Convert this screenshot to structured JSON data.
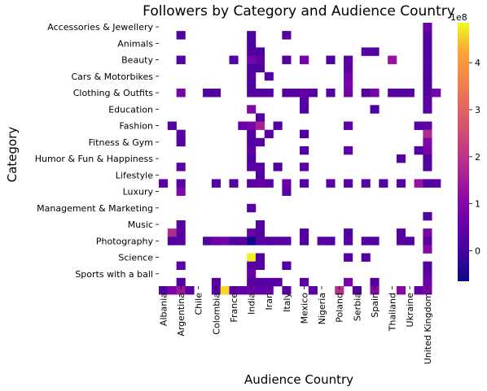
{
  "chart_data": {
    "type": "heatmap",
    "title": "Followers by Category and Audience Country",
    "xlabel": "Audience Country",
    "ylabel": "Category",
    "y_categories": [
      "Accessories & Jewellery",
      "",
      "Animals",
      "",
      "Beauty",
      "",
      "Cars & Motorbikes",
      "",
      "Clothing & Outfits",
      "",
      "Education",
      "",
      "Fashion",
      "",
      "Fitness & Gym",
      "",
      "Humor & Fun & Happiness",
      "",
      "Lifestyle",
      "",
      "Luxury",
      "",
      "Management & Marketing",
      "",
      "Music",
      "",
      "Photography",
      "",
      "Science",
      "",
      "Sports with a ball",
      ""
    ],
    "y_tick_labels": [
      "Accessories & Jewellery",
      "Animals",
      "Beauty",
      "Cars & Motorbikes",
      "Clothing & Outfits",
      "Education",
      "Fashion",
      "Fitness & Gym",
      "Humor & Fun & Happiness",
      "Lifestyle",
      "Luxury",
      "Management & Marketing",
      "Music",
      "Photography",
      "Science",
      "Sports with a ball"
    ],
    "x_categories": [
      "Albania",
      "",
      "Argentina",
      "",
      "Chile",
      "",
      "Colombia",
      "",
      "France",
      "",
      "India",
      "",
      "Iran",
      "",
      "Italy",
      "",
      "Mexico",
      "",
      "Nigeria",
      "",
      "Poland",
      "",
      "Serbia",
      "",
      "Spain",
      "",
      "Thailand",
      "",
      "Ukraine",
      "",
      "United Kingdom",
      ""
    ],
    "x_tick_labels": [
      "Albania",
      "Argentina",
      "Chile",
      "Colombia",
      "France",
      "India",
      "Iran",
      "Italy",
      "Mexico",
      "Nigeria",
      "Poland",
      "Serbia",
      "Spain",
      "Thailand",
      "Ukraine",
      "United Kingdom"
    ],
    "colorbar": {
      "colormap": "plasma",
      "vmin": -0.65,
      "vmax": 4.85,
      "ticks": [
        0,
        1,
        2,
        3,
        4
      ],
      "offset_label": "1e8"
    },
    "cells": [
      {
        "r": 0,
        "c": 30,
        "v": 0.6
      },
      {
        "r": 1,
        "c": 2,
        "v": 0.2
      },
      {
        "r": 1,
        "c": 10,
        "v": 0.1
      },
      {
        "r": 1,
        "c": 14,
        "v": 0.2
      },
      {
        "r": 1,
        "c": 30,
        "v": 0.3
      },
      {
        "r": 2,
        "c": 10,
        "v": 0.1
      },
      {
        "r": 2,
        "c": 30,
        "v": 0.2
      },
      {
        "r": 3,
        "c": 10,
        "v": 0.2
      },
      {
        "r": 3,
        "c": 11,
        "v": 0.1
      },
      {
        "r": 3,
        "c": 23,
        "v": 0.3
      },
      {
        "r": 3,
        "c": 24,
        "v": 0.2
      },
      {
        "r": 3,
        "c": 30,
        "v": 0.2
      },
      {
        "r": 4,
        "c": 2,
        "v": 0.2
      },
      {
        "r": 4,
        "c": 8,
        "v": 0.2
      },
      {
        "r": 4,
        "c": 10,
        "v": 0.8
      },
      {
        "r": 4,
        "c": 11,
        "v": 0.4
      },
      {
        "r": 4,
        "c": 14,
        "v": 0.2
      },
      {
        "r": 4,
        "c": 16,
        "v": 0.7
      },
      {
        "r": 4,
        "c": 19,
        "v": 0.1
      },
      {
        "r": 4,
        "c": 21,
        "v": 0.3
      },
      {
        "r": 4,
        "c": 26,
        "v": 1.3
      },
      {
        "r": 4,
        "c": 30,
        "v": 0.2
      },
      {
        "r": 5,
        "c": 10,
        "v": 0.1
      },
      {
        "r": 5,
        "c": 11,
        "v": 0.2
      },
      {
        "r": 5,
        "c": 21,
        "v": 0.4
      },
      {
        "r": 5,
        "c": 30,
        "v": 0.2
      },
      {
        "r": 6,
        "c": 10,
        "v": 0.2
      },
      {
        "r": 6,
        "c": 12,
        "v": 0.2
      },
      {
        "r": 6,
        "c": 21,
        "v": 0.7
      },
      {
        "r": 6,
        "c": 30,
        "v": 0.1
      },
      {
        "r": 7,
        "c": 10,
        "v": 0.1
      },
      {
        "r": 7,
        "c": 21,
        "v": 0.8
      },
      {
        "r": 7,
        "c": 30,
        "v": 0.2
      },
      {
        "r": 8,
        "c": 2,
        "v": 0.8
      },
      {
        "r": 8,
        "c": 5,
        "v": 0.2
      },
      {
        "r": 8,
        "c": 6,
        "v": 0.2
      },
      {
        "r": 8,
        "c": 10,
        "v": 0.3
      },
      {
        "r": 8,
        "c": 11,
        "v": 0.2
      },
      {
        "r": 8,
        "c": 12,
        "v": 0.3
      },
      {
        "r": 8,
        "c": 14,
        "v": 0.2
      },
      {
        "r": 8,
        "c": 15,
        "v": 0.3
      },
      {
        "r": 8,
        "c": 16,
        "v": 0.5
      },
      {
        "r": 8,
        "c": 17,
        "v": 0.3
      },
      {
        "r": 8,
        "c": 19,
        "v": 0.2
      },
      {
        "r": 8,
        "c": 21,
        "v": 0.7
      },
      {
        "r": 8,
        "c": 23,
        "v": 0.2
      },
      {
        "r": 8,
        "c": 24,
        "v": 0.8
      },
      {
        "r": 8,
        "c": 26,
        "v": 0.3
      },
      {
        "r": 8,
        "c": 27,
        "v": 0.2
      },
      {
        "r": 8,
        "c": 28,
        "v": 0.3
      },
      {
        "r": 8,
        "c": 30,
        "v": 0.2
      },
      {
        "r": 8,
        "c": 31,
        "v": 0.8
      },
      {
        "r": 9,
        "c": 16,
        "v": 0.3
      },
      {
        "r": 9,
        "c": 30,
        "v": 0.4
      },
      {
        "r": 10,
        "c": 10,
        "v": 0.9
      },
      {
        "r": 10,
        "c": 16,
        "v": 0.2
      },
      {
        "r": 10,
        "c": 24,
        "v": 0.1
      },
      {
        "r": 10,
        "c": 30,
        "v": 0.3
      },
      {
        "r": 11,
        "c": 11,
        "v": 0.2
      },
      {
        "r": 12,
        "c": 1,
        "v": 0.2
      },
      {
        "r": 12,
        "c": 9,
        "v": 0.5
      },
      {
        "r": 12,
        "c": 10,
        "v": 0.8
      },
      {
        "r": 12,
        "c": 11,
        "v": 1.6
      },
      {
        "r": 12,
        "c": 13,
        "v": 0.2
      },
      {
        "r": 12,
        "c": 21,
        "v": 0.4
      },
      {
        "r": 12,
        "c": 29,
        "v": 0.3
      },
      {
        "r": 12,
        "c": 30,
        "v": 0.4
      },
      {
        "r": 13,
        "c": 2,
        "v": 0.3
      },
      {
        "r": 13,
        "c": 10,
        "v": 0.2
      },
      {
        "r": 13,
        "c": 12,
        "v": 0.3
      },
      {
        "r": 13,
        "c": 16,
        "v": 0.2
      },
      {
        "r": 13,
        "c": 30,
        "v": 1.8
      },
      {
        "r": 14,
        "c": 2,
        "v": 0.2
      },
      {
        "r": 14,
        "c": 10,
        "v": 0.2
      },
      {
        "r": 14,
        "c": 11,
        "v": 0.3
      },
      {
        "r": 14,
        "c": 30,
        "v": 0.9
      },
      {
        "r": 15,
        "c": 10,
        "v": 0.4
      },
      {
        "r": 15,
        "c": 16,
        "v": 0.2
      },
      {
        "r": 15,
        "c": 21,
        "v": 0.4
      },
      {
        "r": 15,
        "c": 29,
        "v": 0.2
      },
      {
        "r": 15,
        "c": 30,
        "v": 0.8
      },
      {
        "r": 16,
        "c": 10,
        "v": 0.1
      },
      {
        "r": 16,
        "c": 27,
        "v": 0.3
      },
      {
        "r": 16,
        "c": 30,
        "v": 0.2
      },
      {
        "r": 17,
        "c": 2,
        "v": 0.3
      },
      {
        "r": 17,
        "c": 10,
        "v": 0.3
      },
      {
        "r": 17,
        "c": 11,
        "v": 0.3
      },
      {
        "r": 17,
        "c": 13,
        "v": 0.2
      },
      {
        "r": 17,
        "c": 16,
        "v": 0.3
      },
      {
        "r": 17,
        "c": 30,
        "v": 0.2
      },
      {
        "r": 18,
        "c": 11,
        "v": 0.2
      },
      {
        "r": 19,
        "c": 0,
        "v": 0.3
      },
      {
        "r": 19,
        "c": 2,
        "v": 0.3
      },
      {
        "r": 19,
        "c": 6,
        "v": 0.2
      },
      {
        "r": 19,
        "c": 8,
        "v": 0.2
      },
      {
        "r": 19,
        "c": 10,
        "v": 0.3
      },
      {
        "r": 19,
        "c": 11,
        "v": 0.5
      },
      {
        "r": 19,
        "c": 12,
        "v": 0.3
      },
      {
        "r": 19,
        "c": 14,
        "v": 0.6
      },
      {
        "r": 19,
        "c": 16,
        "v": 0.2
      },
      {
        "r": 19,
        "c": 19,
        "v": 0.3
      },
      {
        "r": 19,
        "c": 21,
        "v": 0.3
      },
      {
        "r": 19,
        "c": 23,
        "v": 0.3
      },
      {
        "r": 19,
        "c": 25,
        "v": 0.2
      },
      {
        "r": 19,
        "c": 27,
        "v": 0.3
      },
      {
        "r": 19,
        "c": 29,
        "v": 1.3
      },
      {
        "r": 19,
        "c": 30,
        "v": 0.2
      },
      {
        "r": 19,
        "c": 31,
        "v": 0.3
      },
      {
        "r": 20,
        "c": 2,
        "v": 0.9
      },
      {
        "r": 20,
        "c": 14,
        "v": 0.3
      },
      {
        "r": 22,
        "c": 10,
        "v": 0.3
      },
      {
        "r": 23,
        "c": 30,
        "v": 0.2
      },
      {
        "r": 24,
        "c": 2,
        "v": 0.3
      },
      {
        "r": 24,
        "c": 11,
        "v": 0.2
      },
      {
        "r": 25,
        "c": 1,
        "v": 1.8
      },
      {
        "r": 25,
        "c": 2,
        "v": 0.2
      },
      {
        "r": 25,
        "c": 10,
        "v": 0.6
      },
      {
        "r": 25,
        "c": 11,
        "v": 0.2
      },
      {
        "r": 25,
        "c": 16,
        "v": 0.2
      },
      {
        "r": 25,
        "c": 21,
        "v": 0.2
      },
      {
        "r": 25,
        "c": 27,
        "v": 0.3
      },
      {
        "r": 25,
        "c": 30,
        "v": 0.8
      },
      {
        "r": 26,
        "c": 1,
        "v": 0.2
      },
      {
        "r": 26,
        "c": 2,
        "v": 0.3
      },
      {
        "r": 26,
        "c": 5,
        "v": 0.2
      },
      {
        "r": 26,
        "c": 6,
        "v": 0.6
      },
      {
        "r": 26,
        "c": 7,
        "v": 0.7
      },
      {
        "r": 26,
        "c": 8,
        "v": 0.2
      },
      {
        "r": 26,
        "c": 9,
        "v": 0.3
      },
      {
        "r": 26,
        "c": 10,
        "v": -0.6
      },
      {
        "r": 26,
        "c": 11,
        "v": 0.3
      },
      {
        "r": 26,
        "c": 12,
        "v": 0.2
      },
      {
        "r": 26,
        "c": 13,
        "v": 0.3
      },
      {
        "r": 26,
        "c": 14,
        "v": 0.3
      },
      {
        "r": 26,
        "c": 16,
        "v": 0.2
      },
      {
        "r": 26,
        "c": 18,
        "v": 0.3
      },
      {
        "r": 26,
        "c": 19,
        "v": 0.2
      },
      {
        "r": 26,
        "c": 21,
        "v": 0.3
      },
      {
        "r": 26,
        "c": 23,
        "v": 0.3
      },
      {
        "r": 26,
        "c": 24,
        "v": 0.2
      },
      {
        "r": 26,
        "c": 27,
        "v": 0.3
      },
      {
        "r": 26,
        "c": 28,
        "v": 0.2
      },
      {
        "r": 26,
        "c": 30,
        "v": 0.3
      },
      {
        "r": 27,
        "c": 30,
        "v": 1.0
      },
      {
        "r": 28,
        "c": 10,
        "v": 4.8
      },
      {
        "r": 28,
        "c": 11,
        "v": 0.2
      },
      {
        "r": 28,
        "c": 21,
        "v": 0.3
      },
      {
        "r": 28,
        "c": 23,
        "v": 0.2
      },
      {
        "r": 29,
        "c": 2,
        "v": 0.3
      },
      {
        "r": 29,
        "c": 10,
        "v": 0.3
      },
      {
        "r": 29,
        "c": 11,
        "v": 0.2
      },
      {
        "r": 29,
        "c": 14,
        "v": 0.2
      },
      {
        "r": 29,
        "c": 30,
        "v": 0.2
      },
      {
        "r": 30,
        "c": 10,
        "v": 0.6
      },
      {
        "r": 30,
        "c": 30,
        "v": 0.4
      },
      {
        "r": 31,
        "c": 2,
        "v": 0.2
      },
      {
        "r": 31,
        "c": 6,
        "v": 0.3
      },
      {
        "r": 31,
        "c": 10,
        "v": 0.3
      },
      {
        "r": 31,
        "c": 11,
        "v": 0.3
      },
      {
        "r": 31,
        "c": 12,
        "v": 0.3
      },
      {
        "r": 31,
        "c": 13,
        "v": 0.3
      },
      {
        "r": 31,
        "c": 16,
        "v": 0.3
      },
      {
        "r": 31,
        "c": 21,
        "v": 0.8
      },
      {
        "r": 31,
        "c": 24,
        "v": 0.2
      },
      {
        "r": 31,
        "c": 30,
        "v": 0.6
      },
      {
        "r": 32,
        "c": 0,
        "v": 0.3
      },
      {
        "r": 32,
        "c": 1,
        "v": 0.8
      },
      {
        "r": 32,
        "c": 2,
        "v": 1.4
      },
      {
        "r": 32,
        "c": 3,
        "v": 0.3
      },
      {
        "r": 32,
        "c": 6,
        "v": 0.3
      },
      {
        "r": 32,
        "c": 7,
        "v": 4.6
      },
      {
        "r": 32,
        "c": 8,
        "v": 0.5
      },
      {
        "r": 32,
        "c": 9,
        "v": 0.4
      },
      {
        "r": 32,
        "c": 10,
        "v": 0.6
      },
      {
        "r": 32,
        "c": 11,
        "v": 0.4
      },
      {
        "r": 32,
        "c": 12,
        "v": 0.6
      },
      {
        "r": 32,
        "c": 14,
        "v": 0.3
      },
      {
        "r": 32,
        "c": 17,
        "v": 0.3
      },
      {
        "r": 32,
        "c": 20,
        "v": 1.9
      },
      {
        "r": 32,
        "c": 22,
        "v": 0.2
      },
      {
        "r": 32,
        "c": 24,
        "v": 1.0
      },
      {
        "r": 32,
        "c": 27,
        "v": 1.0
      },
      {
        "r": 32,
        "c": 29,
        "v": 0.4
      },
      {
        "r": 32,
        "c": 30,
        "v": 0.8
      }
    ]
  }
}
